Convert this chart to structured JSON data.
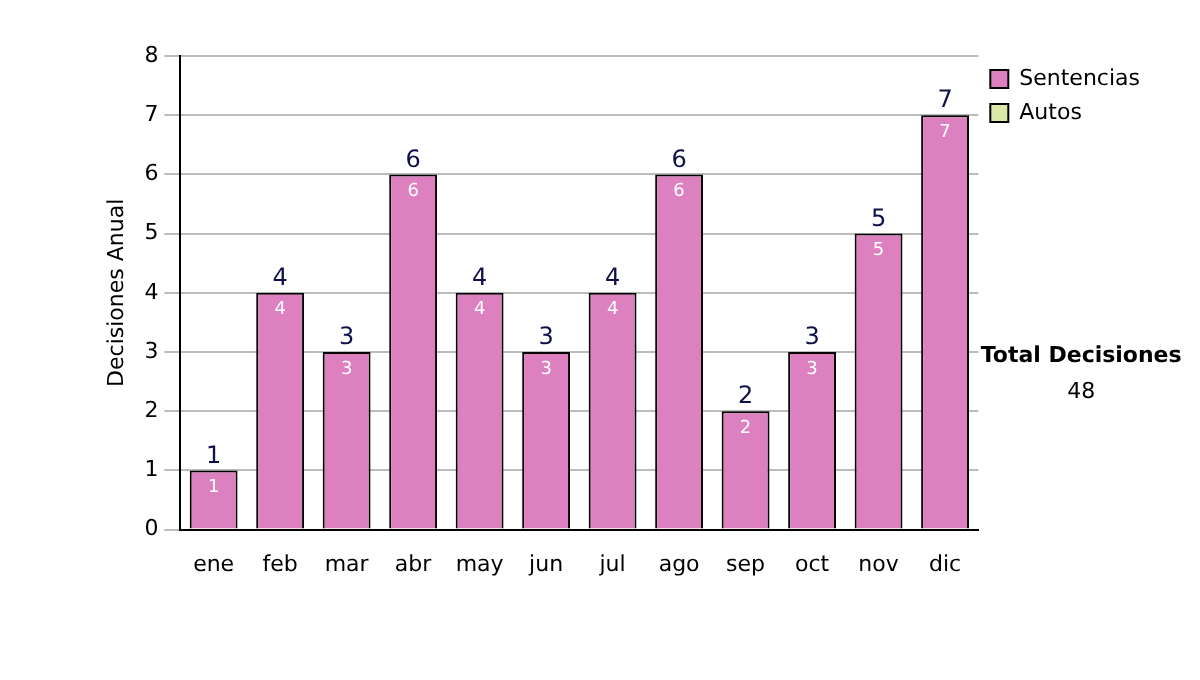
{
  "chart_data": {
    "type": "bar",
    "ylabel": "Decisiones Anual",
    "categories": [
      "ene",
      "feb",
      "mar",
      "abr",
      "may",
      "jun",
      "jul",
      "ago",
      "sep",
      "oct",
      "nov",
      "dic"
    ],
    "series": [
      {
        "name": "Sentencias",
        "color": "#dc80c0",
        "values": [
          1,
          4,
          3,
          6,
          4,
          3,
          4,
          6,
          2,
          3,
          5,
          7
        ],
        "value_labels": [
          "1",
          "4",
          "3",
          "6",
          "4",
          "3",
          "4",
          "6",
          "2",
          "3",
          "5",
          "7"
        ]
      },
      {
        "name": "Autos",
        "color": "#dce8a8",
        "values": [
          0,
          0,
          0,
          0,
          0,
          0,
          0,
          0,
          0,
          0,
          0,
          0
        ],
        "value_labels": [
          null,
          null,
          null,
          null,
          null,
          null,
          null,
          null,
          null,
          null,
          null,
          null
        ]
      }
    ],
    "stacked": true,
    "totals": [
      "1",
      "4",
      "3",
      "6",
      "4",
      "3",
      "4",
      "6",
      "2",
      "3",
      "5",
      "7"
    ],
    "ylim": [
      0,
      8
    ],
    "yticks": [
      0,
      1,
      2,
      3,
      4,
      5,
      6,
      7,
      8
    ],
    "grid": "y",
    "legend": "right",
    "annotations": [
      "Total Decisiones",
      "48"
    ]
  }
}
